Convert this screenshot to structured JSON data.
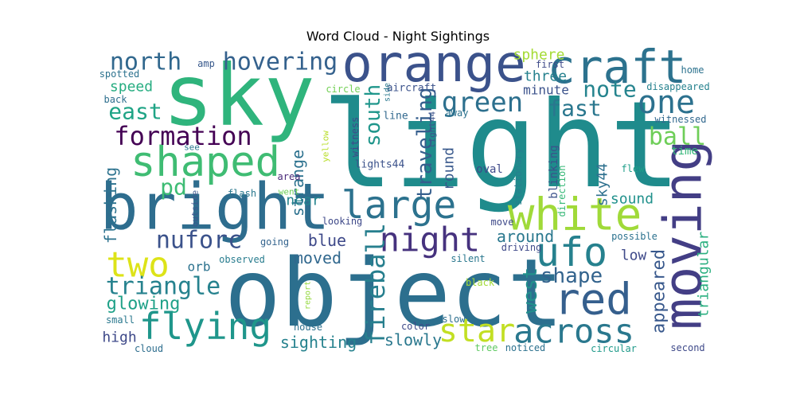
{
  "chart_data": {
    "type": "wordcloud",
    "title": "Word Cloud - Night Sightings",
    "background": "#ffffff",
    "palette": "viridis",
    "words": [
      {
        "text": "light",
        "weight": 1.0,
        "color": "#1f8b8c",
        "orientation": "horizontal"
      },
      {
        "text": "object",
        "weight": 0.78,
        "color": "#2c6f8e",
        "orientation": "horizontal"
      },
      {
        "text": "sky",
        "weight": 0.7,
        "color": "#2fb47c",
        "orientation": "horizontal"
      },
      {
        "text": "bright",
        "weight": 0.56,
        "color": "#2e6d8e",
        "orientation": "horizontal"
      },
      {
        "text": "orange",
        "weight": 0.5,
        "color": "#3b528b",
        "orientation": "horizontal"
      },
      {
        "text": "moving",
        "weight": 0.44,
        "color": "#433e85",
        "orientation": "vertical"
      },
      {
        "text": "craft",
        "weight": 0.42,
        "color": "#2c728e",
        "orientation": "horizontal"
      },
      {
        "text": "white",
        "weight": 0.4,
        "color": "#a0da39",
        "orientation": "horizontal"
      },
      {
        "text": "shaped",
        "weight": 0.36,
        "color": "#3fbc73",
        "orientation": "horizontal"
      },
      {
        "text": "red",
        "weight": 0.35,
        "color": "#355f8d",
        "orientation": "horizontal"
      },
      {
        "text": "ufo",
        "weight": 0.34,
        "color": "#26818e",
        "orientation": "horizontal"
      },
      {
        "text": "large",
        "weight": 0.33,
        "color": "#2c728e",
        "orientation": "horizontal"
      },
      {
        "text": "flying",
        "weight": 0.32,
        "color": "#1f968b",
        "orientation": "horizontal"
      },
      {
        "text": "night",
        "weight": 0.32,
        "color": "#46327e",
        "orientation": "horizontal"
      },
      {
        "text": "across",
        "weight": 0.31,
        "color": "#2a788e",
        "orientation": "horizontal"
      },
      {
        "text": "two",
        "weight": 0.3,
        "color": "#dde318",
        "orientation": "horizontal"
      },
      {
        "text": "star",
        "weight": 0.3,
        "color": "#c2df23",
        "orientation": "horizontal"
      },
      {
        "text": "one",
        "weight": 0.28,
        "color": "#2c718e",
        "orientation": "horizontal"
      },
      {
        "text": "fireball",
        "weight": 0.26,
        "color": "#277f8e",
        "orientation": "vertical"
      },
      {
        "text": "green",
        "weight": 0.24,
        "color": "#2d708e",
        "orientation": "horizontal"
      },
      {
        "text": "formation",
        "weight": 0.24,
        "color": "#440154",
        "orientation": "horizontal"
      },
      {
        "text": "triangle",
        "weight": 0.24,
        "color": "#26828e",
        "orientation": "horizontal"
      },
      {
        "text": "hovering",
        "weight": 0.23,
        "color": "#34618d",
        "orientation": "horizontal"
      },
      {
        "text": "north",
        "weight": 0.22,
        "color": "#31688e",
        "orientation": "horizontal"
      },
      {
        "text": "nuforc",
        "weight": 0.22,
        "color": "#3b528b",
        "orientation": "horizontal"
      },
      {
        "text": "ball",
        "weight": 0.22,
        "color": "#6ece58",
        "orientation": "horizontal"
      },
      {
        "text": "note",
        "weight": 0.21,
        "color": "#25848e",
        "orientation": "horizontal"
      },
      {
        "text": "fast",
        "weight": 0.21,
        "color": "#2a778e",
        "orientation": "horizontal"
      },
      {
        "text": "east",
        "weight": 0.2,
        "color": "#20a486",
        "orientation": "horizontal"
      },
      {
        "text": "shape",
        "weight": 0.2,
        "color": "#33638d",
        "orientation": "horizontal"
      },
      {
        "text": "pd",
        "weight": 0.2,
        "color": "#3dbc74",
        "orientation": "horizontal"
      },
      {
        "text": "traveling",
        "weight": 0.19,
        "color": "#355e8d",
        "orientation": "vertical"
      },
      {
        "text": "south",
        "weight": 0.19,
        "color": "#1f968b",
        "orientation": "vertical"
      },
      {
        "text": "west",
        "weight": 0.18,
        "color": "#21918c",
        "orientation": "vertical"
      },
      {
        "text": "appeared",
        "weight": 0.17,
        "color": "#38588c",
        "orientation": "vertical"
      },
      {
        "text": "glowing",
        "weight": 0.16,
        "color": "#1fa188",
        "orientation": "horizontal"
      },
      {
        "text": "sighting",
        "weight": 0.16,
        "color": "#26828e",
        "orientation": "horizontal"
      },
      {
        "text": "slowly",
        "weight": 0.15,
        "color": "#2a788e",
        "orientation": "horizontal"
      },
      {
        "text": "around",
        "weight": 0.15,
        "color": "#2a788e",
        "orientation": "horizontal"
      },
      {
        "text": "moved",
        "weight": 0.15,
        "color": "#31688e",
        "orientation": "horizontal"
      },
      {
        "text": "blue",
        "weight": 0.15,
        "color": "#3e4989",
        "orientation": "horizontal"
      },
      {
        "text": "strange",
        "weight": 0.15,
        "color": "#2c718e",
        "orientation": "vertical"
      },
      {
        "text": "triangular",
        "weight": 0.15,
        "color": "#29af7f",
        "orientation": "vertical"
      },
      {
        "text": "flashing",
        "weight": 0.15,
        "color": "#2c728e",
        "orientation": "vertical"
      },
      {
        "text": "sound",
        "weight": 0.14,
        "color": "#21918c",
        "orientation": "horizontal"
      },
      {
        "text": "three",
        "weight": 0.14,
        "color": "#26818e",
        "orientation": "horizontal"
      },
      {
        "text": "speed",
        "weight": 0.14,
        "color": "#27ad81",
        "orientation": "horizontal"
      },
      {
        "text": "sphere",
        "weight": 0.14,
        "color": "#a5db36",
        "orientation": "horizontal"
      },
      {
        "text": "high",
        "weight": 0.13,
        "color": "#3e4989",
        "orientation": "horizontal"
      },
      {
        "text": "round",
        "weight": 0.13,
        "color": "#38588c",
        "orientation": "vertical"
      },
      {
        "text": "sky44",
        "weight": 0.13,
        "color": "#2d708e",
        "orientation": "vertical"
      },
      {
        "text": "near",
        "weight": 0.13,
        "color": "#25848e",
        "orientation": "horizontal"
      },
      {
        "text": "low",
        "weight": 0.13,
        "color": "#3e4989",
        "orientation": "horizontal"
      },
      {
        "text": "orb",
        "weight": 0.12,
        "color": "#2c728e",
        "orientation": "horizontal"
      },
      {
        "text": "minute",
        "weight": 0.12,
        "color": "#3b528b",
        "orientation": "horizontal"
      },
      {
        "text": "time",
        "weight": 0.11,
        "color": "#35b779",
        "orientation": "horizontal"
      },
      {
        "text": "blinking",
        "weight": 0.1,
        "color": "#3b528b",
        "orientation": "vertical"
      },
      {
        "text": "flew",
        "weight": 0.1,
        "color": "#1f9e89",
        "orientation": "horizontal"
      },
      {
        "text": "oval",
        "weight": 0.1,
        "color": "#3e4989",
        "orientation": "horizontal"
      },
      {
        "text": "color",
        "weight": 0.1,
        "color": "#3e4a89",
        "orientation": "horizontal"
      },
      {
        "text": "witnessed",
        "weight": 0.1,
        "color": "#31688e",
        "orientation": "horizontal"
      },
      {
        "text": "disappeared",
        "weight": 0.1,
        "color": "#26828e",
        "orientation": "horizontal"
      },
      {
        "text": "witness",
        "weight": 0.09,
        "color": "#3e4989",
        "orientation": "vertical"
      },
      {
        "text": "lights44",
        "weight": 0.09,
        "color": "#3b528b",
        "orientation": "horizontal"
      },
      {
        "text": "light44",
        "weight": 0.09,
        "color": "#3b528b",
        "orientation": "vertical"
      },
      {
        "text": "aircraft",
        "weight": 0.1,
        "color": "#3b528b",
        "orientation": "horizontal"
      },
      {
        "text": "stationary",
        "weight": 0.09,
        "color": "#277f8e",
        "orientation": "vertical"
      },
      {
        "text": "direction",
        "weight": 0.09,
        "color": "#37b878",
        "orientation": "vertical"
      },
      {
        "text": "line",
        "weight": 0.09,
        "color": "#31688e",
        "orientation": "horizontal"
      },
      {
        "text": "away",
        "weight": 0.09,
        "color": "#2c728e",
        "orientation": "horizontal"
      },
      {
        "text": "circle",
        "weight": 0.08,
        "color": "#73d056",
        "orientation": "horizontal"
      },
      {
        "text": "side",
        "weight": 0.08,
        "color": "#2a788e",
        "orientation": "vertical"
      },
      {
        "text": "amp",
        "weight": 0.08,
        "color": "#38598c",
        "orientation": "horizontal"
      },
      {
        "text": "spotted",
        "weight": 0.08,
        "color": "#2c728e",
        "orientation": "horizontal"
      },
      {
        "text": "back",
        "weight": 0.08,
        "color": "#2e6f8e",
        "orientation": "horizontal"
      },
      {
        "text": "first",
        "weight": 0.08,
        "color": "#3e4a89",
        "orientation": "horizontal"
      },
      {
        "text": "home",
        "weight": 0.08,
        "color": "#2c728e",
        "orientation": "horizontal"
      },
      {
        "text": "see",
        "weight": 0.07,
        "color": "#2a778e",
        "orientation": "horizontal"
      },
      {
        "text": "yellow",
        "weight": 0.08,
        "color": "#b8de29",
        "orientation": "vertical"
      },
      {
        "text": "area",
        "weight": 0.08,
        "color": "#482878",
        "orientation": "horizontal"
      },
      {
        "text": "went",
        "weight": 0.08,
        "color": "#6ece58",
        "orientation": "horizontal"
      },
      {
        "text": "flash",
        "weight": 0.08,
        "color": "#2a788e",
        "orientation": "horizontal"
      },
      {
        "text": "outside",
        "weight": 0.08,
        "color": "#39558c",
        "orientation": "vertical"
      },
      {
        "text": "looking",
        "weight": 0.08,
        "color": "#3e4989",
        "orientation": "horizontal"
      },
      {
        "text": "move",
        "weight": 0.08,
        "color": "#3e4989",
        "orientation": "horizontal"
      },
      {
        "text": "going",
        "weight": 0.08,
        "color": "#33638d",
        "orientation": "horizontal"
      },
      {
        "text": "possible",
        "weight": 0.08,
        "color": "#2c728e",
        "orientation": "horizontal"
      },
      {
        "text": "observed",
        "weight": 0.08,
        "color": "#287c8e",
        "orientation": "horizontal"
      },
      {
        "text": "driving",
        "weight": 0.08,
        "color": "#3e4989",
        "orientation": "horizontal"
      },
      {
        "text": "silent",
        "weight": 0.08,
        "color": "#2a788e",
        "orientation": "horizontal"
      },
      {
        "text": "report",
        "weight": 0.07,
        "color": "#95d840",
        "orientation": "vertical"
      },
      {
        "text": "black",
        "weight": 0.08,
        "color": "#a2da37",
        "orientation": "horizontal"
      },
      {
        "text": "slow",
        "weight": 0.08,
        "color": "#2e6f8e",
        "orientation": "horizontal"
      },
      {
        "text": "small",
        "weight": 0.08,
        "color": "#2a788e",
        "orientation": "horizontal"
      },
      {
        "text": "house",
        "weight": 0.08,
        "color": "#2d708e",
        "orientation": "horizontal"
      },
      {
        "text": "cloud",
        "weight": 0.08,
        "color": "#2e6e8e",
        "orientation": "horizontal"
      },
      {
        "text": "tree",
        "weight": 0.08,
        "color": "#5ec962",
        "orientation": "horizontal"
      },
      {
        "text": "noticed",
        "weight": 0.08,
        "color": "#2c718e",
        "orientation": "horizontal"
      },
      {
        "text": "circular",
        "weight": 0.08,
        "color": "#1f9a8a",
        "orientation": "horizontal"
      },
      {
        "text": "second",
        "weight": 0.08,
        "color": "#3e4989",
        "orientation": "horizontal"
      }
    ]
  }
}
